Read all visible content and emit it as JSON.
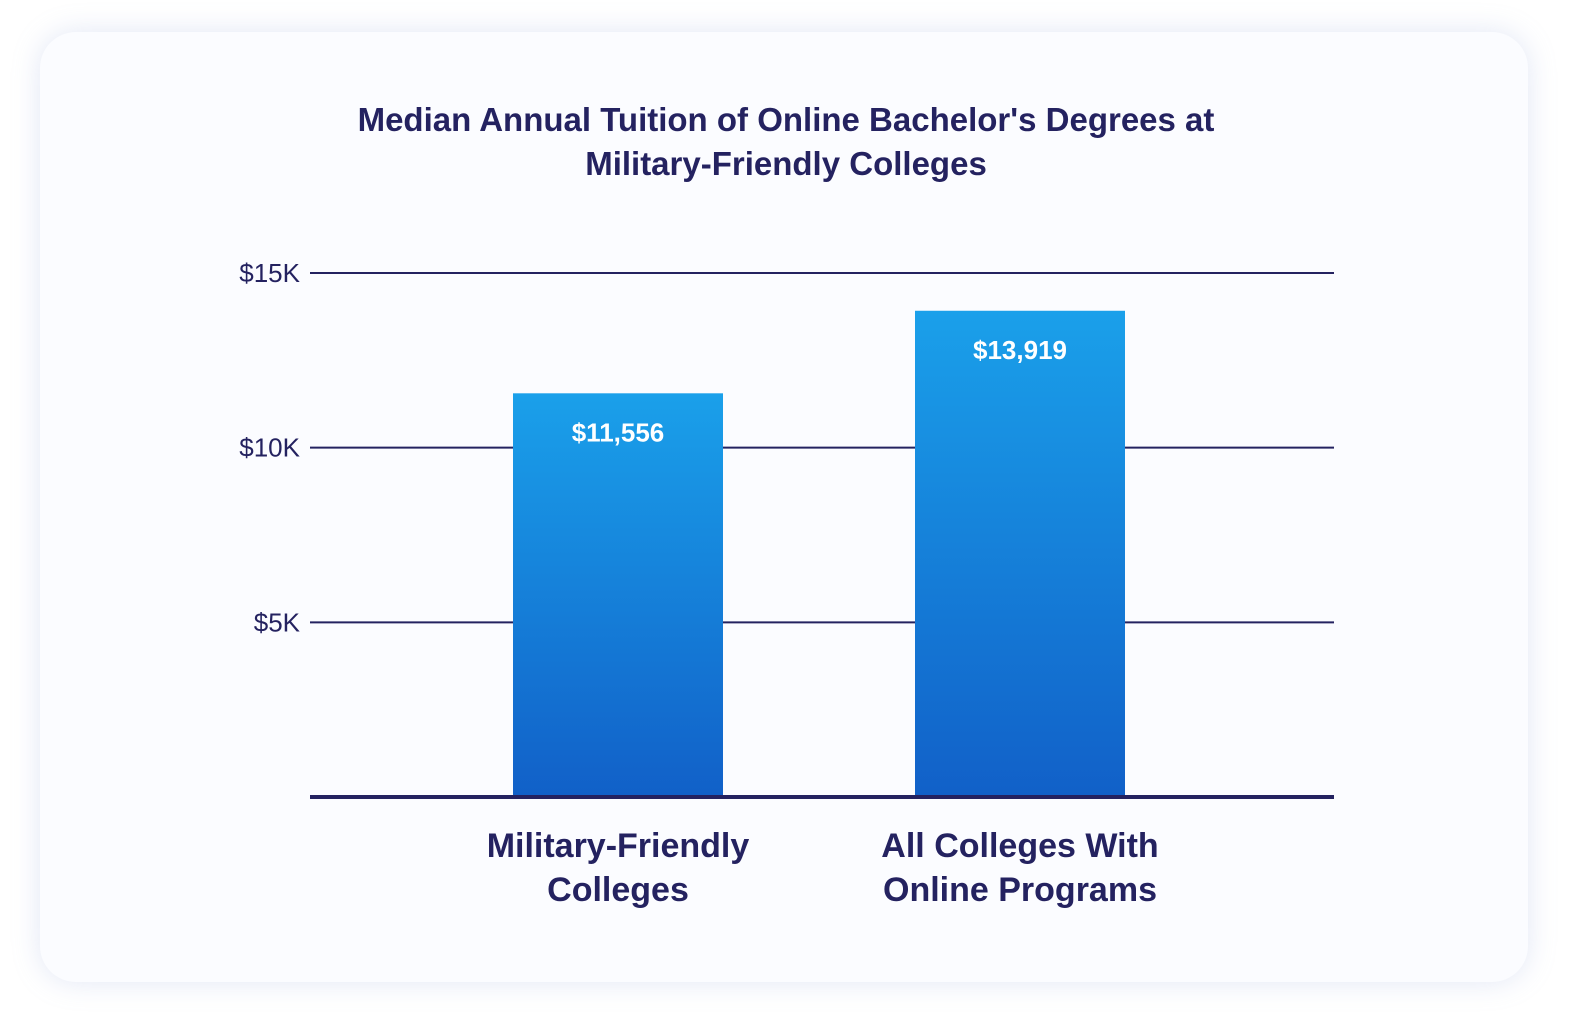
{
  "chart_data": {
    "type": "bar",
    "title_lines": [
      "Median Annual Tuition of Online Bachelor's Degrees at",
      "Military-Friendly Colleges"
    ],
    "categories": [
      [
        "Military-Friendly",
        "Colleges"
      ],
      [
        "All Colleges With",
        "Online Programs"
      ]
    ],
    "values": [
      11556,
      13919
    ],
    "value_labels": [
      "$11,556",
      "$13,919"
    ],
    "y_ticks": [
      5000,
      10000,
      15000
    ],
    "y_tick_labels": [
      "$5K",
      "$10K",
      "$15K"
    ],
    "ylim": [
      0,
      15000
    ],
    "grid": true,
    "xlabel": "",
    "ylabel": ""
  },
  "colors": {
    "bar_top": "#1aa0ea",
    "bar_bottom": "#1160c8",
    "text": "#242260",
    "grid": "#242260"
  }
}
